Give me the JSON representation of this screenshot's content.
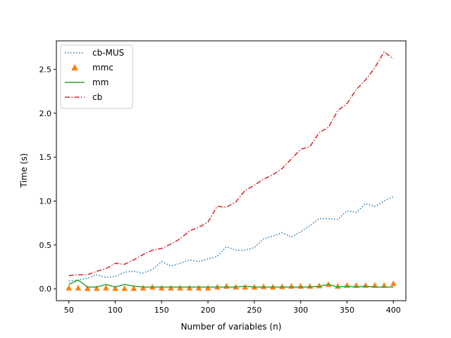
{
  "chart_data": {
    "type": "line",
    "xlabel": "Number of variables (n)",
    "ylabel": "Time (s)",
    "xlim": [
      36.5,
      413.5
    ],
    "ylim": [
      -0.135,
      2.825
    ],
    "xticks": [
      50,
      100,
      150,
      200,
      250,
      300,
      350,
      400
    ],
    "yticks": [
      0.0,
      0.5,
      1.0,
      1.5,
      2.0,
      2.5
    ],
    "xtick_labels": [
      "50",
      "100",
      "150",
      "200",
      "250",
      "300",
      "350",
      "400"
    ],
    "ytick_labels": [
      "0.0",
      "0.5",
      "1.0",
      "1.5",
      "2.0",
      "2.5"
    ],
    "grid": false,
    "legend_position": "top-left",
    "x": [
      50,
      60,
      70,
      80,
      90,
      100,
      110,
      120,
      130,
      140,
      150,
      160,
      170,
      180,
      190,
      200,
      210,
      220,
      230,
      240,
      250,
      260,
      270,
      280,
      290,
      300,
      310,
      320,
      330,
      340,
      350,
      360,
      370,
      380,
      390,
      400
    ],
    "series": [
      {
        "name": "cb-MUS",
        "style": "dotted",
        "color": "#1f77b4",
        "values": [
          0.09,
          0.1,
          0.12,
          0.16,
          0.13,
          0.14,
          0.19,
          0.2,
          0.18,
          0.22,
          0.31,
          0.26,
          0.29,
          0.33,
          0.31,
          0.34,
          0.37,
          0.48,
          0.44,
          0.44,
          0.47,
          0.57,
          0.6,
          0.64,
          0.59,
          0.65,
          0.72,
          0.8,
          0.8,
          0.79,
          0.89,
          0.87,
          0.97,
          0.94,
          1.0,
          1.05
        ]
      },
      {
        "name": "mmc",
        "style": "triangle",
        "color": "#ff7f0e",
        "values": [
          0.01,
          0.01,
          0.005,
          0.005,
          0.01,
          0.005,
          0.005,
          0.005,
          0.01,
          0.02,
          0.01,
          0.01,
          0.01,
          0.01,
          0.01,
          0.01,
          0.02,
          0.03,
          0.02,
          0.02,
          0.02,
          0.025,
          0.02,
          0.025,
          0.03,
          0.03,
          0.03,
          0.035,
          0.05,
          0.03,
          0.04,
          0.04,
          0.04,
          0.04,
          0.04,
          0.06
        ]
      },
      {
        "name": "mm",
        "style": "solid",
        "color": "#2ca02c",
        "values": [
          0.05,
          0.1,
          0.02,
          0.02,
          0.05,
          0.02,
          0.05,
          0.03,
          0.02,
          0.02,
          0.02,
          0.02,
          0.02,
          0.02,
          0.02,
          0.02,
          0.02,
          0.02,
          0.02,
          0.03,
          0.02,
          0.02,
          0.02,
          0.02,
          0.02,
          0.02,
          0.02,
          0.03,
          0.05,
          0.02,
          0.03,
          0.02,
          0.03,
          0.02,
          0.02,
          0.02
        ]
      },
      {
        "name": "cb",
        "style": "dashdot",
        "color": "#d62728",
        "values": [
          0.15,
          0.16,
          0.16,
          0.2,
          0.23,
          0.29,
          0.28,
          0.33,
          0.39,
          0.44,
          0.46,
          0.51,
          0.57,
          0.66,
          0.7,
          0.76,
          0.94,
          0.93,
          0.99,
          1.12,
          1.18,
          1.25,
          1.3,
          1.37,
          1.48,
          1.59,
          1.62,
          1.78,
          1.84,
          2.03,
          2.11,
          2.27,
          2.38,
          2.52,
          2.7,
          2.62
        ]
      }
    ]
  }
}
